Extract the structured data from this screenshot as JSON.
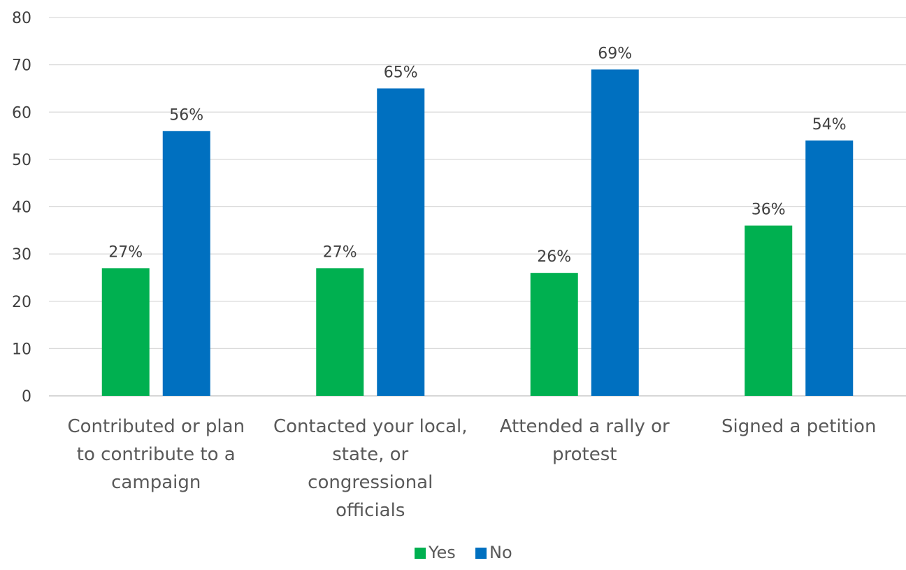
{
  "chart_data": {
    "type": "bar",
    "categories": [
      [
        "Contributed or plan",
        "to contribute to a",
        "campaign"
      ],
      [
        "Contacted your local,",
        "state, or",
        "congressional",
        "officials"
      ],
      [
        "Attended a rally or",
        "protest"
      ],
      [
        "Signed a petition"
      ]
    ],
    "series": [
      {
        "name": "Yes",
        "color": "#00B050",
        "values": [
          27,
          27,
          26,
          36
        ],
        "labels": [
          "27%",
          "27%",
          "26%",
          "36%"
        ]
      },
      {
        "name": "No",
        "color": "#0070C0",
        "values": [
          56,
          65,
          69,
          54
        ],
        "labels": [
          "56%",
          "65%",
          "69%",
          "54%"
        ]
      }
    ],
    "ylim": [
      0,
      80
    ],
    "yticks": [
      "0",
      "10",
      "20",
      "30",
      "40",
      "50",
      "60",
      "70",
      "80"
    ],
    "grid": true,
    "legend_position": "bottom"
  }
}
